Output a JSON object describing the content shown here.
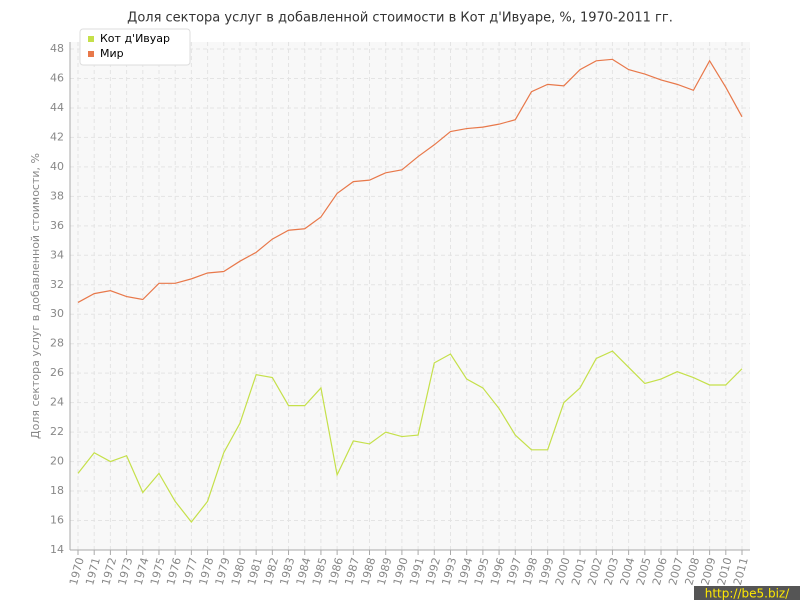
{
  "chart_data": {
    "type": "line",
    "title": "Доля сектора услуг в добавленной стоимости в Кот д'Ивуаре, %, 1970-2011 гг.",
    "y_label": "Доля сектора услуг в добавленной стоимости, %",
    "watermark": "http://be5.biz/",
    "categories": [
      "1970",
      "1971",
      "1972",
      "1973",
      "1974",
      "1975",
      "1976",
      "1977",
      "1978",
      "1979",
      "1980",
      "1981",
      "1982",
      "1983",
      "1984",
      "1985",
      "1986",
      "1987",
      "1988",
      "1989",
      "1990",
      "1991",
      "1992",
      "1993",
      "1994",
      "1995",
      "1996",
      "1997",
      "1998",
      "1999",
      "2000",
      "2001",
      "2002",
      "2003",
      "2004",
      "2005",
      "2006",
      "2007",
      "2008",
      "2009",
      "2010",
      "2011"
    ],
    "series": [
      {
        "name": "Кот д'Ивуар",
        "color": "#c5e04a",
        "values": [
          19.2,
          20.6,
          20.0,
          20.4,
          17.9,
          19.2,
          17.3,
          15.9,
          17.3,
          20.6,
          22.6,
          25.9,
          25.7,
          23.8,
          23.8,
          25.0,
          19.1,
          21.4,
          21.2,
          22.0,
          21.7,
          21.8,
          26.7,
          27.3,
          25.6,
          25.0,
          23.6,
          21.8,
          20.8,
          20.8,
          24.0,
          25.0,
          27.0,
          27.5,
          26.4,
          25.3,
          25.6,
          26.1,
          25.7,
          25.2,
          25.2,
          26.3
        ]
      },
      {
        "name": "Мир",
        "color": "#e8784a",
        "values": [
          30.8,
          31.4,
          31.6,
          31.2,
          31.0,
          32.1,
          32.1,
          32.4,
          32.8,
          32.9,
          33.6,
          34.2,
          35.1,
          35.7,
          35.8,
          36.6,
          38.2,
          39.0,
          39.1,
          39.6,
          39.8,
          40.7,
          41.5,
          42.4,
          42.6,
          42.7,
          42.9,
          43.2,
          45.1,
          45.6,
          45.5,
          46.6,
          47.2,
          47.3,
          46.6,
          46.3,
          45.9,
          45.6,
          45.2,
          47.2,
          45.4,
          43.4
        ]
      }
    ],
    "ylim": [
      14,
      48
    ],
    "yticks": [
      14,
      16,
      18,
      20,
      22,
      24,
      26,
      28,
      30,
      32,
      34,
      36,
      38,
      40,
      42,
      44,
      46,
      48
    ],
    "grid": true,
    "legend": "upper-left"
  }
}
